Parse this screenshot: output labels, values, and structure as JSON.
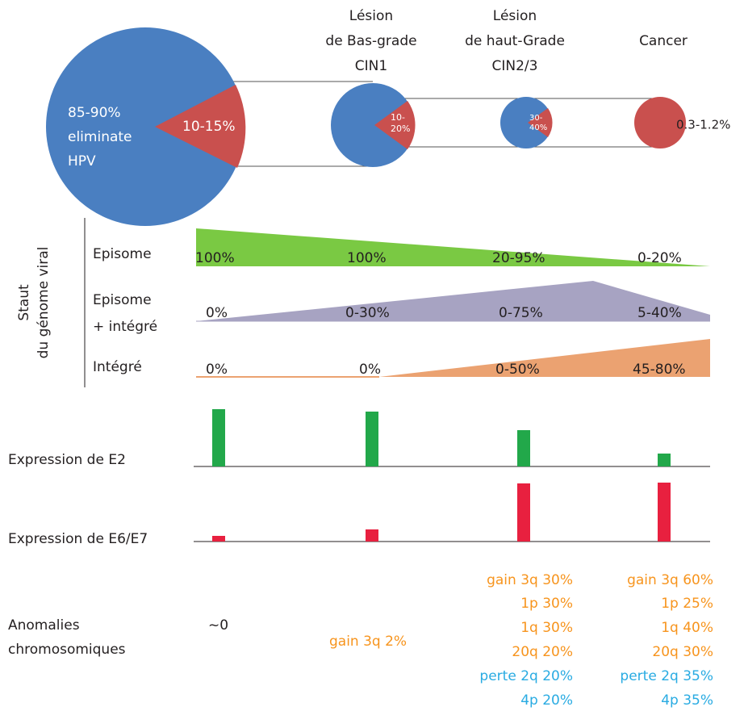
{
  "stages": [
    [
      "Lésion",
      "de Bas-grade",
      "CIN1"
    ],
    [
      "Lésion",
      "de haut-Grade",
      "CIN2/3"
    ],
    [
      "Cancer"
    ]
  ],
  "pies": [
    {
      "outer": [
        "85-90%",
        "eliminate",
        "HPV"
      ],
      "slice": [
        "10-15%"
      ]
    },
    {
      "slice": [
        "10-",
        "20%"
      ]
    },
    {
      "slice": [
        "30-",
        "40%"
      ]
    },
    {
      "slice": [
        "0.3-1.2%"
      ]
    }
  ],
  "viral": {
    "title": [
      "Staut",
      "du génome viral"
    ],
    "rows": [
      {
        "label": [
          "Episome"
        ],
        "values": [
          "100%",
          "100%",
          "20-95%",
          "0-20%"
        ]
      },
      {
        "label": [
          "Episome",
          "+ intégré"
        ],
        "values": [
          "0%",
          "0-30%",
          "0-75%",
          "5-40%"
        ]
      },
      {
        "label": [
          "Intégré"
        ],
        "values": [
          "0%",
          "0%",
          "0-50%",
          "45-80%"
        ]
      }
    ]
  },
  "expression": [
    "Expression de E2",
    "Expression de E6/E7"
  ],
  "anomalies": {
    "label": [
      "Anomalies",
      "chromosomiques"
    ],
    "columns": [
      {
        "lines": [
          "~0"
        ]
      },
      {
        "gains": [
          "gain 3q 2%"
        ]
      },
      {
        "gains": [
          "gain 3q 30%",
          "1p 30%",
          "1q 30%",
          "20q 20%"
        ],
        "losses": [
          "perte 2q 20%",
          "4p 20%"
        ]
      },
      {
        "gains": [
          "gain 3q 60%",
          "1p 25%",
          "1q 40%",
          "20q 30%"
        ],
        "losses": [
          "perte 2q 35%",
          "4p 35%"
        ]
      }
    ]
  }
}
